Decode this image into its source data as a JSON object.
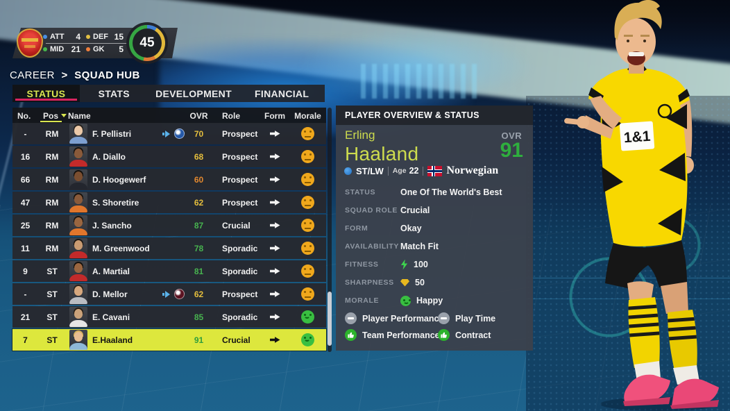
{
  "club_panel": {
    "stats": [
      {
        "label": "ATT",
        "value": "4",
        "color": "#4a90e2"
      },
      {
        "label": "DEF",
        "value": "15",
        "color": "#e2c044"
      },
      {
        "label": "MID",
        "value": "21",
        "color": "#46b84c"
      },
      {
        "label": "GK",
        "value": "5",
        "color": "#f07f3c"
      }
    ],
    "total": "45",
    "ring_colors": {
      "att": "#3f7fd4",
      "def": "#e2b83a",
      "gk": "#e07a35",
      "mid": "#36a643"
    }
  },
  "breadcrumb": {
    "section": "CAREER",
    "separator": ">",
    "page": "SQUAD HUB"
  },
  "tabs": [
    {
      "label": "STATUS",
      "active": true
    },
    {
      "label": "STATS",
      "active": false
    },
    {
      "label": "DEVELOPMENT",
      "active": false
    },
    {
      "label": "FINANCIAL",
      "active": false
    }
  ],
  "table": {
    "headers": {
      "no": "No.",
      "pos": "Pos",
      "name": "Name",
      "ovr": "OVR",
      "role": "Role",
      "form": "Form",
      "morale": "Morale"
    },
    "rows": [
      {
        "no": "-",
        "pos": "RM",
        "name": "F. Pellistri",
        "loan": true,
        "badge_color": "#2458a8",
        "ovr": "70",
        "ovr_color": "#e5be3d",
        "role": "Prospect",
        "morale": "neutral",
        "selected": false,
        "skin": "#ecc9a8",
        "hair": "#23201d",
        "shirt": "#7d9fd0"
      },
      {
        "no": "16",
        "pos": "RM",
        "name": "A. Diallo",
        "loan": false,
        "badge_color": "",
        "ovr": "68",
        "ovr_color": "#e5be3d",
        "role": "Prospect",
        "morale": "neutral",
        "selected": false,
        "skin": "#8a5a3a",
        "hair": "#17120e",
        "shirt": "#c32a2a"
      },
      {
        "no": "66",
        "pos": "RM",
        "name": "D. Hoogewerf",
        "loan": false,
        "badge_color": "",
        "ovr": "60",
        "ovr_color": "#e2882f",
        "role": "Prospect",
        "morale": "neutral",
        "selected": false,
        "skin": "#7a4e30",
        "hair": "#14100c",
        "shirt": "#23262e"
      },
      {
        "no": "47",
        "pos": "RM",
        "name": "S. Shoretire",
        "loan": false,
        "badge_color": "",
        "ovr": "62",
        "ovr_color": "#e5be3d",
        "role": "Prospect",
        "morale": "neutral",
        "selected": false,
        "skin": "#8a5a3a",
        "hair": "#17120e",
        "shirt": "#e0762c"
      },
      {
        "no": "25",
        "pos": "RM",
        "name": "J. Sancho",
        "loan": false,
        "badge_color": "",
        "ovr": "87",
        "ovr_color": "#47b34f",
        "role": "Crucial",
        "morale": "neutral",
        "selected": false,
        "skin": "#9a6640",
        "hair": "#1a140e",
        "shirt": "#e0762c"
      },
      {
        "no": "11",
        "pos": "RM",
        "name": "M. Greenwood",
        "loan": false,
        "badge_color": "",
        "ovr": "78",
        "ovr_color": "#47b34f",
        "role": "Sporadic",
        "morale": "neutral",
        "selected": false,
        "skin": "#c99b72",
        "hair": "#1c1712",
        "shirt": "#c32a2a"
      },
      {
        "no": "9",
        "pos": "ST",
        "name": "A. Martial",
        "loan": false,
        "badge_color": "",
        "ovr": "81",
        "ovr_color": "#47b34f",
        "role": "Sporadic",
        "morale": "neutral",
        "selected": false,
        "skin": "#9a6640",
        "hair": "#14100c",
        "shirt": "#c32a2a"
      },
      {
        "no": "-",
        "pos": "ST",
        "name": "D. Mellor",
        "loan": true,
        "badge_color": "#5a1220",
        "ovr": "62",
        "ovr_color": "#e5be3d",
        "role": "Prospect",
        "morale": "neutral",
        "selected": false,
        "skin": "#d8a87e",
        "hair": "#2a221a",
        "shirt": "#b9bcc2"
      },
      {
        "no": "21",
        "pos": "ST",
        "name": "E. Cavani",
        "loan": false,
        "badge_color": "",
        "ovr": "85",
        "ovr_color": "#47b34f",
        "role": "Sporadic",
        "morale": "happy",
        "selected": false,
        "skin": "#caa27a",
        "hair": "#241c14",
        "shirt": "#e6e6e6"
      },
      {
        "no": "7",
        "pos": "ST",
        "name": "E.Haaland",
        "bold_prefix": "E.H",
        "loan": false,
        "badge_color": "",
        "ovr": "91",
        "ovr_color": "#2f9e3c",
        "role": "Crucial",
        "morale": "happy",
        "selected": true,
        "skin": "#e8bd92",
        "hair": "#d9b25e",
        "shirt": "#8db8d8"
      }
    ]
  },
  "player_panel": {
    "header": "PLAYER OVERVIEW & STATUS",
    "first_name": "Erling",
    "last_name": "Haaland",
    "ovr_label": "OVR",
    "ovr_value": "91",
    "position": "ST/LW",
    "age_label": "Age",
    "age_value": "22",
    "nationality": "Norwegian",
    "fields": [
      {
        "label": "STATUS",
        "value": "One Of The World's Best",
        "icon": null
      },
      {
        "label": "SQUAD ROLE",
        "value": "Crucial",
        "icon": null
      },
      {
        "label": "FORM",
        "value": "Okay",
        "icon": null
      },
      {
        "label": "AVAILABILITY",
        "value": "Match Fit",
        "icon": null
      },
      {
        "label": "FITNESS",
        "value": "100",
        "icon": "bolt"
      },
      {
        "label": "SHARPNESS",
        "value": "50",
        "icon": "diamond"
      },
      {
        "label": "MORALE",
        "value": "Happy",
        "icon": "smile"
      }
    ],
    "chips": [
      {
        "label": "Player Performance",
        "state": "neutral"
      },
      {
        "label": "Play Time",
        "state": "neutral"
      },
      {
        "label": "Team Performance",
        "state": "positive"
      },
      {
        "label": "Contract",
        "state": "positive"
      }
    ]
  },
  "colors": {
    "row_highlight": "#dde73d",
    "active_tab_text": "#d9e54f",
    "tab_underline": "#d8245f",
    "panel_name_green": "#cddc4e",
    "ovr_green": "#2fae3e"
  }
}
